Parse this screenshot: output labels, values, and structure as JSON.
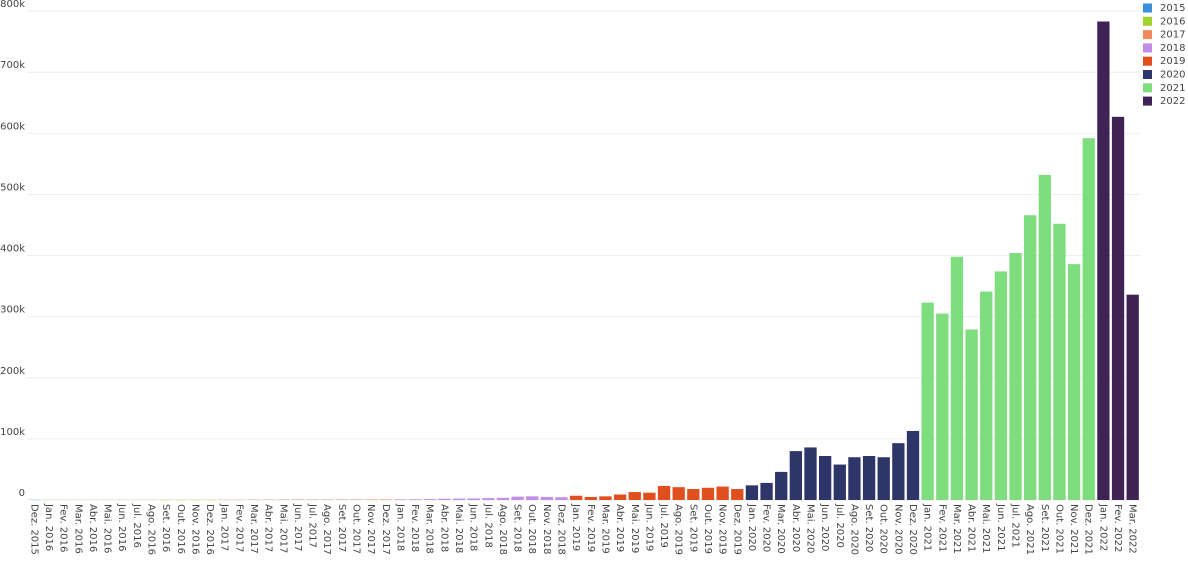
{
  "chart_data": {
    "type": "bar",
    "categories": [
      "Dez. 2015",
      "Jan. 2016",
      "Fev. 2016",
      "Mar. 2016",
      "Abr. 2016",
      "Mai. 2016",
      "Jun. 2016",
      "Jul. 2016",
      "Ago. 2016",
      "Set. 2016",
      "Out. 2016",
      "Nov. 2016",
      "Dez. 2016",
      "Jan. 2017",
      "Fev. 2017",
      "Mar. 2017",
      "Abr. 2017",
      "Mai. 2017",
      "Jun. 2017",
      "Jul. 2017",
      "Ago. 2017",
      "Set. 2017",
      "Out. 2017",
      "Nov. 2017",
      "Dez. 2017",
      "Jan. 2018",
      "Fev. 2018",
      "Mar. 2018",
      "Abr. 2018",
      "Mai. 2018",
      "Jun. 2018",
      "Jul. 2018",
      "Ago. 2018",
      "Set. 2018",
      "Out. 2018",
      "Nov. 2018",
      "Dez. 2018",
      "Jan. 2019",
      "Fev. 2019",
      "Mar. 2019",
      "Abr. 2019",
      "Mai. 2019",
      "Jun. 2019",
      "Jul. 2019",
      "Ago. 2019",
      "Set. 2019",
      "Out. 2019",
      "Nov. 2019",
      "Dez. 2019",
      "Jan. 2020",
      "Fev. 2020",
      "Mar. 2020",
      "Abr. 2020",
      "Mai. 2020",
      "Jun. 2020",
      "Jul. 2020",
      "Ago. 2020",
      "Set. 2020",
      "Out. 2020",
      "Nov. 2020",
      "Dez. 2020",
      "Jan. 2021",
      "Fev. 2021",
      "Mar. 2021",
      "Abr. 2021",
      "Mai. 2021",
      "Jun. 2021",
      "Jul. 2021",
      "Ago. 2021",
      "Set. 2021",
      "Out. 2021",
      "Nov. 2021",
      "Dez. 2021",
      "Jan. 2022",
      "Fev. 2022",
      "Mar. 2022"
    ],
    "series": [
      {
        "name": "2015",
        "color": "#3a8fde",
        "values": [
          300,
          null,
          null,
          null,
          null,
          null,
          null,
          null,
          null,
          null,
          null,
          null,
          null,
          null,
          null,
          null,
          null,
          null,
          null,
          null,
          null,
          null,
          null,
          null,
          null,
          null,
          null,
          null,
          null,
          null,
          null,
          null,
          null,
          null,
          null,
          null,
          null,
          null,
          null,
          null,
          null,
          null,
          null,
          null,
          null,
          null,
          null,
          null,
          null,
          null,
          null,
          null,
          null,
          null,
          null,
          null,
          null,
          null,
          null,
          null,
          null,
          null,
          null,
          null,
          null,
          null,
          null,
          null,
          null,
          null,
          null,
          null,
          null,
          null,
          null,
          null
        ]
      },
      {
        "name": "2016",
        "color": "#a2d32f",
        "values": [
          null,
          300,
          300,
          300,
          300,
          400,
          400,
          400,
          400,
          500,
          500,
          500,
          500,
          null,
          null,
          null,
          null,
          null,
          null,
          null,
          null,
          null,
          null,
          null,
          null,
          null,
          null,
          null,
          null,
          null,
          null,
          null,
          null,
          null,
          null,
          null,
          null,
          null,
          null,
          null,
          null,
          null,
          null,
          null,
          null,
          null,
          null,
          null,
          null,
          null,
          null,
          null,
          null,
          null,
          null,
          null,
          null,
          null,
          null,
          null,
          null,
          null,
          null,
          null,
          null,
          null,
          null,
          null,
          null,
          null,
          null,
          null,
          null,
          null,
          null,
          null
        ]
      },
      {
        "name": "2017",
        "color": "#f08a5d",
        "values": [
          null,
          null,
          null,
          null,
          null,
          null,
          null,
          null,
          null,
          null,
          null,
          null,
          null,
          500,
          500,
          600,
          600,
          700,
          800,
          700,
          700,
          800,
          800,
          900,
          900,
          null,
          null,
          null,
          null,
          null,
          null,
          null,
          null,
          null,
          null,
          null,
          null,
          null,
          null,
          null,
          null,
          null,
          null,
          null,
          null,
          null,
          null,
          null,
          null,
          null,
          null,
          null,
          null,
          null,
          null,
          null,
          null,
          null,
          null,
          null,
          null,
          null,
          null,
          null,
          null,
          null,
          null,
          null,
          null,
          null,
          null,
          null,
          null,
          null,
          null,
          null
        ]
      },
      {
        "name": "2018",
        "color": "#c18de8",
        "values": [
          null,
          null,
          null,
          null,
          null,
          null,
          null,
          null,
          null,
          null,
          null,
          null,
          null,
          null,
          null,
          null,
          null,
          null,
          null,
          null,
          null,
          null,
          null,
          null,
          null,
          1000,
          1200,
          1500,
          2000,
          2200,
          2500,
          3000,
          3500,
          5500,
          6000,
          5000,
          4500,
          null,
          null,
          null,
          null,
          null,
          null,
          null,
          null,
          null,
          null,
          null,
          null,
          null,
          null,
          null,
          null,
          null,
          null,
          null,
          null,
          null,
          null,
          null,
          null,
          null,
          null,
          null,
          null,
          null,
          null,
          null,
          null,
          null,
          null,
          null,
          null,
          null,
          null,
          null
        ]
      },
      {
        "name": "2019",
        "color": "#e0501e",
        "values": [
          null,
          null,
          null,
          null,
          null,
          null,
          null,
          null,
          null,
          null,
          null,
          null,
          null,
          null,
          null,
          null,
          null,
          null,
          null,
          null,
          null,
          null,
          null,
          null,
          null,
          null,
          null,
          null,
          null,
          null,
          null,
          null,
          null,
          null,
          null,
          null,
          null,
          7000,
          5000,
          6000,
          9000,
          13000,
          12000,
          23000,
          21000,
          18000,
          20000,
          22000,
          18000,
          null,
          null,
          null,
          null,
          null,
          null,
          null,
          null,
          null,
          null,
          null,
          null,
          null,
          null,
          null,
          null,
          null,
          null,
          null,
          null,
          null,
          null,
          null,
          null,
          null,
          null,
          null
        ]
      },
      {
        "name": "2020",
        "color": "#2e3669",
        "values": [
          null,
          null,
          null,
          null,
          null,
          null,
          null,
          null,
          null,
          null,
          null,
          null,
          null,
          null,
          null,
          null,
          null,
          null,
          null,
          null,
          null,
          null,
          null,
          null,
          null,
          null,
          null,
          null,
          null,
          null,
          null,
          null,
          null,
          null,
          null,
          null,
          null,
          null,
          null,
          null,
          null,
          null,
          null,
          null,
          null,
          null,
          null,
          null,
          null,
          24000,
          28000,
          46000,
          80000,
          86000,
          72000,
          58000,
          70000,
          72000,
          70000,
          93000,
          113000,
          null,
          null,
          null,
          null,
          null,
          null,
          null,
          null,
          null,
          null,
          null,
          null,
          null,
          null,
          null
        ]
      },
      {
        "name": "2021",
        "color": "#7ede7e",
        "values": [
          null,
          null,
          null,
          null,
          null,
          null,
          null,
          null,
          null,
          null,
          null,
          null,
          null,
          null,
          null,
          null,
          null,
          null,
          null,
          null,
          null,
          null,
          null,
          null,
          null,
          null,
          null,
          null,
          null,
          null,
          null,
          null,
          null,
          null,
          null,
          null,
          null,
          null,
          null,
          null,
          null,
          null,
          null,
          null,
          null,
          null,
          null,
          null,
          null,
          null,
          null,
          null,
          null,
          null,
          null,
          null,
          null,
          null,
          null,
          null,
          null,
          323000,
          305000,
          398000,
          279000,
          341000,
          374000,
          404000,
          466000,
          532000,
          452000,
          386000,
          592000,
          null,
          null,
          null
        ]
      },
      {
        "name": "2022",
        "color": "#3f2354",
        "values": [
          null,
          null,
          null,
          null,
          null,
          null,
          null,
          null,
          null,
          null,
          null,
          null,
          null,
          null,
          null,
          null,
          null,
          null,
          null,
          null,
          null,
          null,
          null,
          null,
          null,
          null,
          null,
          null,
          null,
          null,
          null,
          null,
          null,
          null,
          null,
          null,
          null,
          null,
          null,
          null,
          null,
          null,
          null,
          null,
          null,
          null,
          null,
          null,
          null,
          null,
          null,
          null,
          null,
          null,
          null,
          null,
          null,
          null,
          null,
          null,
          null,
          null,
          null,
          null,
          null,
          null,
          null,
          null,
          null,
          null,
          null,
          null,
          null,
          783000,
          627000,
          336000
        ]
      }
    ],
    "ylim": [
      0,
      810000
    ],
    "yticks": [
      {
        "value": 0,
        "label": "0"
      },
      {
        "value": 100000,
        "label": "100k"
      },
      {
        "value": 200000,
        "label": "200k"
      },
      {
        "value": 300000,
        "label": "300k"
      },
      {
        "value": 400000,
        "label": "400k"
      },
      {
        "value": 500000,
        "label": "500k"
      },
      {
        "value": 600000,
        "label": "600k"
      },
      {
        "value": 700000,
        "label": "700k"
      },
      {
        "value": 800000,
        "label": "800k"
      }
    ],
    "grid": true,
    "legend": "top-right"
  }
}
